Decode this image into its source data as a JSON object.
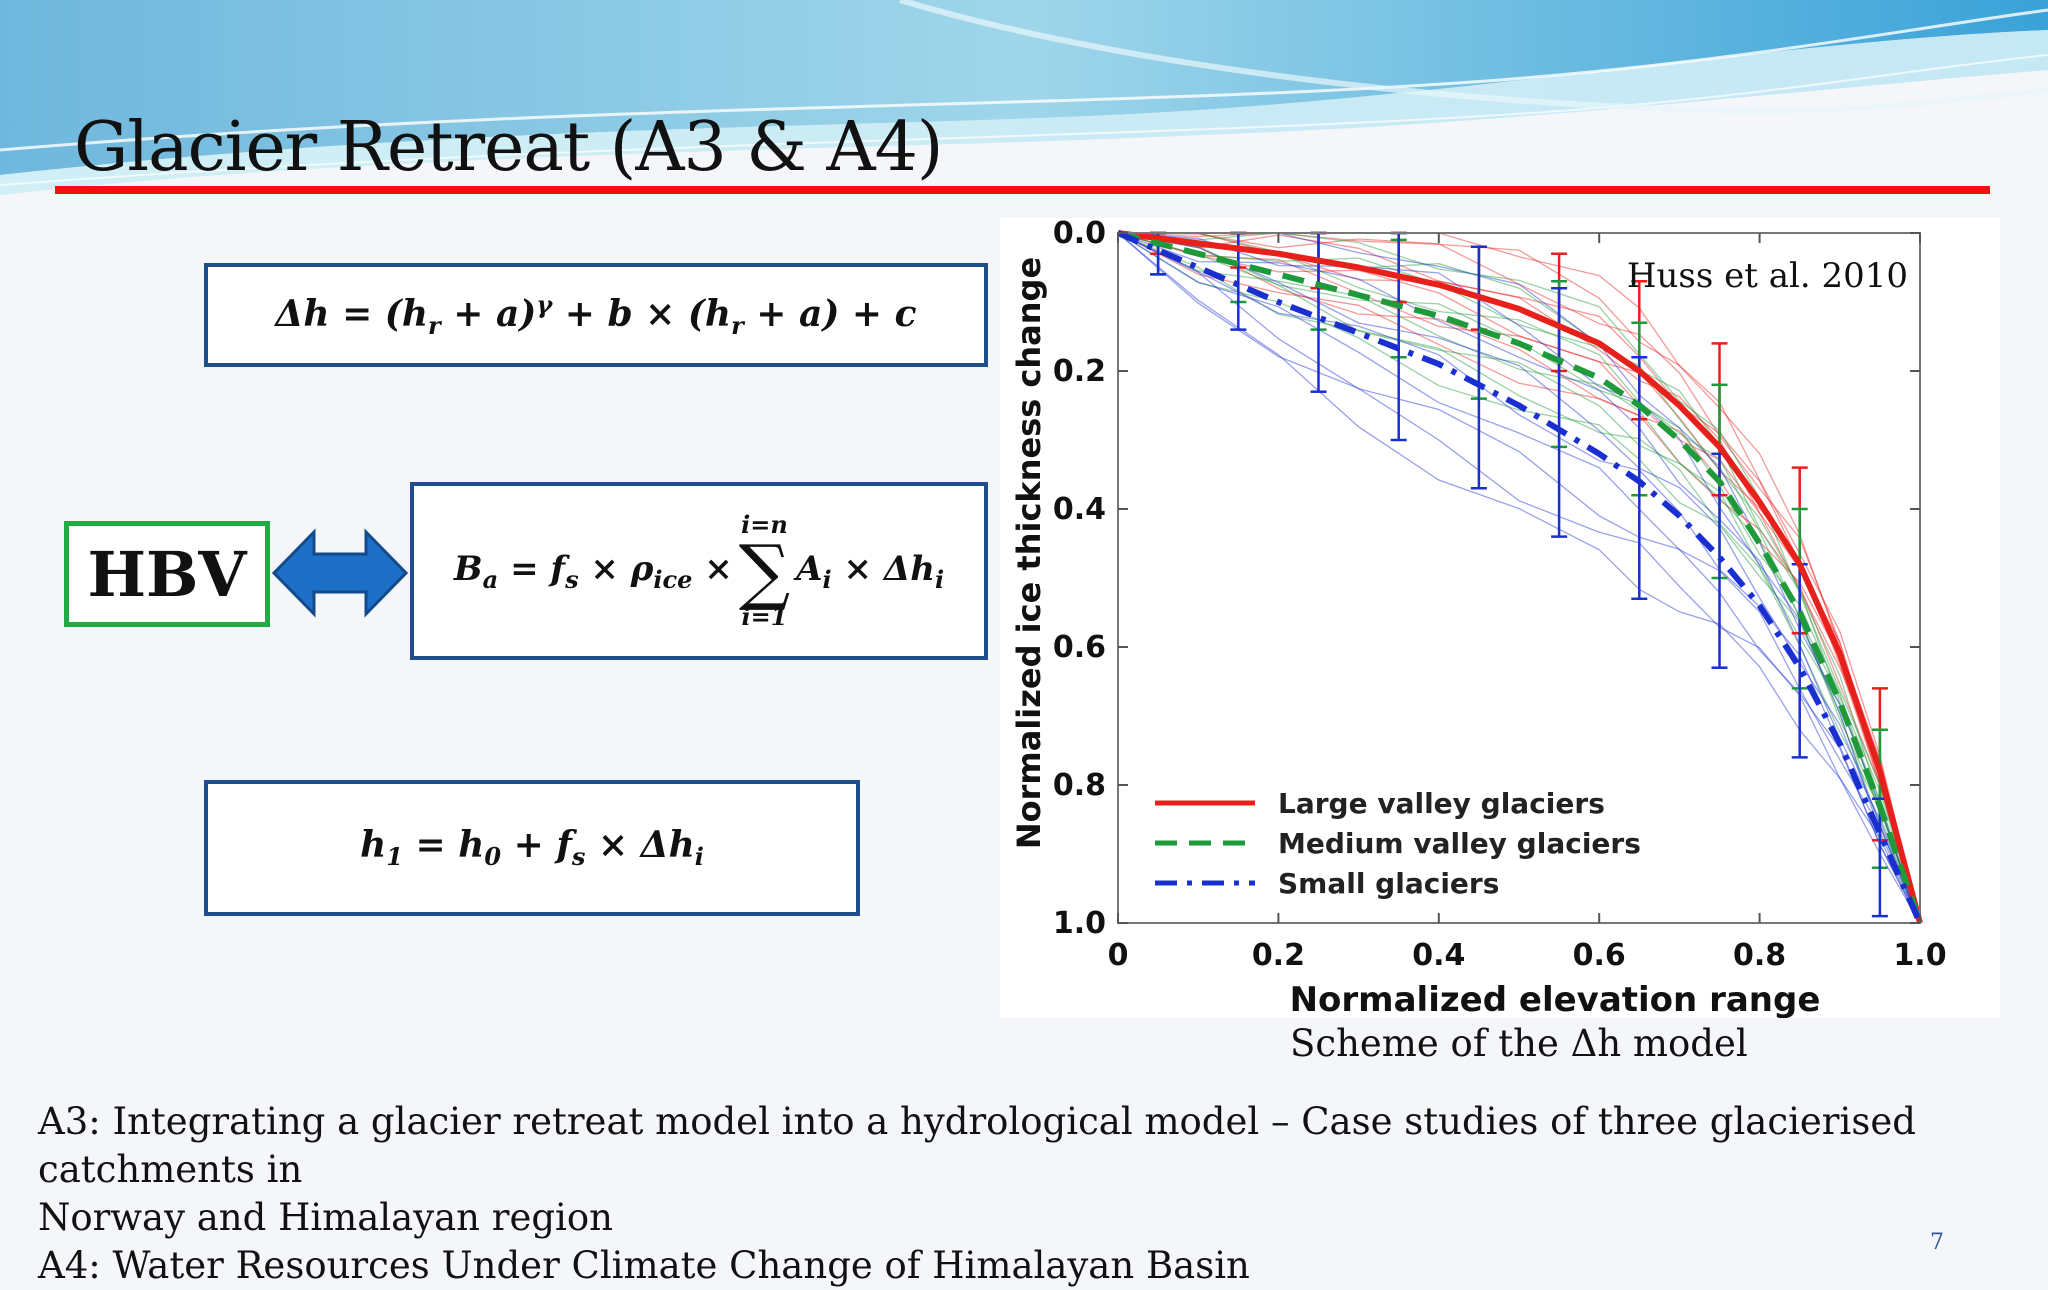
{
  "slide": {
    "title": "Glacier Retreat (A3 & A4)",
    "hbv_label": "HBV",
    "caption": "Scheme of the Δh model",
    "page_number": "7",
    "bottom_lines": [
      "A3: Integrating a glacier retreat model into a hydrological model – Case studies of three glacierised catchments in",
      "Norway and Himalayan region",
      "A4: Water Resources Under Climate Change of Himalayan Basin"
    ],
    "equations": {
      "eq1": "Δh = (h_r + a)^γ + b × (h_r + a) + c",
      "eq2": "B_a = f_s × ρ_ice × Σ_{i=1}^{i=n} A_i × Δh_i",
      "eq3": "h_1 = h_0 + f_s × Δh_i"
    },
    "colors": {
      "title_rule": "#ee1111",
      "box_border": "#1f4e8c",
      "hbv_border": "#22aa44",
      "arrow": "#1e6fc8"
    }
  },
  "chart_data": {
    "type": "line",
    "title": "",
    "source_note": "Huss et al. 2010",
    "xlabel": "Normalized elevation range",
    "ylabel": "Normalized ice thickness change",
    "xlim": [
      0,
      1.0
    ],
    "ylim": [
      0,
      1.0
    ],
    "y_inverted": true,
    "xticks": [
      "0",
      "0.2",
      "0.4",
      "0.6",
      "0.8",
      "1.0"
    ],
    "yticks": [
      "0.0",
      "0.2",
      "0.4",
      "0.6",
      "0.8",
      "1.0"
    ],
    "legend_position": "bottom-left",
    "series": [
      {
        "name": "Large valley glaciers",
        "color": "#e8201c",
        "style": "solid",
        "x": [
          0,
          0.1,
          0.2,
          0.3,
          0.4,
          0.5,
          0.6,
          0.65,
          0.7,
          0.75,
          0.8,
          0.85,
          0.9,
          0.95,
          1.0
        ],
        "y": [
          0,
          0.015,
          0.03,
          0.05,
          0.075,
          0.11,
          0.16,
          0.2,
          0.25,
          0.31,
          0.39,
          0.48,
          0.61,
          0.78,
          1.0
        ]
      },
      {
        "name": "Medium valley glaciers",
        "color": "#1e9a3a",
        "style": "dashed",
        "x": [
          0,
          0.1,
          0.2,
          0.3,
          0.4,
          0.5,
          0.6,
          0.65,
          0.7,
          0.75,
          0.8,
          0.85,
          0.9,
          0.95,
          1.0
        ],
        "y": [
          0,
          0.03,
          0.06,
          0.09,
          0.12,
          0.16,
          0.21,
          0.25,
          0.3,
          0.36,
          0.45,
          0.55,
          0.68,
          0.83,
          1.0
        ]
      },
      {
        "name": "Small glaciers",
        "color": "#1a2fd0",
        "style": "dashdot",
        "x": [
          0,
          0.1,
          0.2,
          0.3,
          0.4,
          0.5,
          0.6,
          0.65,
          0.7,
          0.75,
          0.8,
          0.85,
          0.9,
          0.95,
          1.0
        ],
        "y": [
          0,
          0.05,
          0.1,
          0.145,
          0.19,
          0.25,
          0.32,
          0.36,
          0.41,
          0.47,
          0.54,
          0.63,
          0.74,
          0.87,
          1.0
        ]
      }
    ],
    "error_bars": [
      {
        "series": "Large valley glaciers",
        "x": [
          0.05,
          0.15,
          0.25,
          0.35,
          0.45,
          0.55,
          0.65,
          0.75,
          0.85,
          0.95
        ],
        "low": [
          0.0,
          0.0,
          0.0,
          0.0,
          0.02,
          0.03,
          0.07,
          0.16,
          0.34,
          0.66
        ],
        "high": [
          0.03,
          0.05,
          0.08,
          0.1,
          0.14,
          0.2,
          0.27,
          0.38,
          0.58,
          0.88
        ]
      },
      {
        "series": "Medium valley glaciers",
        "x": [
          0.05,
          0.15,
          0.25,
          0.35,
          0.45,
          0.55,
          0.65,
          0.75,
          0.85,
          0.95
        ],
        "low": [
          0.0,
          0.0,
          0.0,
          0.01,
          0.02,
          0.07,
          0.13,
          0.22,
          0.4,
          0.72
        ],
        "high": [
          0.06,
          0.1,
          0.14,
          0.18,
          0.24,
          0.31,
          0.38,
          0.5,
          0.66,
          0.92
        ]
      },
      {
        "series": "Small glaciers",
        "x": [
          0.05,
          0.15,
          0.25,
          0.35,
          0.45,
          0.55,
          0.65,
          0.75,
          0.85,
          0.95
        ],
        "low": [
          0.0,
          0.0,
          0.0,
          0.0,
          0.02,
          0.08,
          0.18,
          0.32,
          0.48,
          0.82
        ],
        "high": [
          0.06,
          0.14,
          0.23,
          0.3,
          0.37,
          0.44,
          0.53,
          0.63,
          0.76,
          0.99
        ]
      }
    ]
  }
}
